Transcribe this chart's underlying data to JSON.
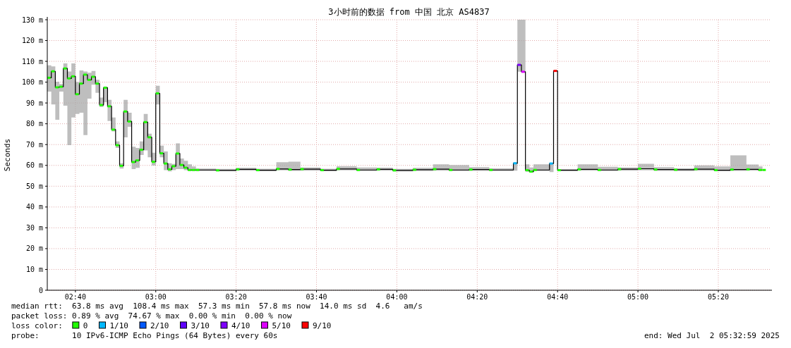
{
  "chart_data": {
    "type": "step",
    "title": "3小时前的数据 from 中国 北京 AS4837",
    "ylabel": "Seconds",
    "legend_title": "loss color:",
    "legend": "bottom",
    "grid": true,
    "xlim": [
      "2025-07-02T02:33",
      "2025-07-02T05:33"
    ],
    "xticks": [
      {
        "value": "2025-07-02T02:40",
        "label": "02:40"
      },
      {
        "value": "2025-07-02T03:00",
        "label": "03:00"
      },
      {
        "value": "2025-07-02T03:20",
        "label": "03:20"
      },
      {
        "value": "2025-07-02T03:40",
        "label": "03:40"
      },
      {
        "value": "2025-07-02T04:00",
        "label": "04:00"
      },
      {
        "value": "2025-07-02T04:20",
        "label": "04:20"
      },
      {
        "value": "2025-07-02T04:40",
        "label": "04:40"
      },
      {
        "value": "2025-07-02T05:00",
        "label": "05:00"
      },
      {
        "value": "2025-07-02T05:20",
        "label": "05:20"
      }
    ],
    "ylim": [
      0,
      130
    ],
    "yticks": [
      0,
      {
        "value": 10,
        "label": "10 m"
      },
      {
        "value": 20,
        "label": "20 m"
      },
      {
        "value": 30,
        "label": "30 m"
      },
      {
        "value": 40,
        "label": "40 m"
      },
      {
        "value": 50,
        "label": "50 m"
      },
      {
        "value": 60,
        "label": "60 m"
      },
      {
        "value": 70,
        "label": "70 m"
      },
      {
        "value": 80,
        "label": "80 m"
      },
      {
        "value": 90,
        "label": "90 m"
      },
      {
        "value": 100,
        "label": "100 m"
      },
      {
        "value": 110,
        "label": "110 m"
      },
      {
        "value": 120,
        "label": "120 m"
      },
      {
        "value": 130,
        "label": "130 m"
      }
    ],
    "annotations": [
      "median rtt:  63.8 ms avg  108.4 ms max  57.3 ms min  57.8 ms now  14.0 ms sd  4.6   am/s",
      "packet loss: 0.89 % avg  74.67 % max  0.00 % min  0.00 % now",
      "probe:       10 IPv6-ICMP Echo Pings (64 Bytes) every 60s",
      "end: Wed Jul  2 05:32:59 2025"
    ],
    "series": [
      {
        "color": "#000000",
        "x": [
          "2025-07-02T02:33",
          "2025-07-02T02:34",
          "2025-07-02T02:35",
          "2025-07-02T02:36",
          "2025-07-02T02:37",
          "2025-07-02T02:38",
          "2025-07-02T02:39",
          "2025-07-02T02:40",
          "2025-07-02T02:41",
          "2025-07-02T02:42",
          "2025-07-02T02:43",
          "2025-07-02T02:44",
          "2025-07-02T02:45",
          "2025-07-02T02:46",
          "2025-07-02T02:47",
          "2025-07-02T02:48",
          "2025-07-02T02:49",
          "2025-07-02T02:50",
          "2025-07-02T02:51",
          "2025-07-02T02:52",
          "2025-07-02T02:53",
          "2025-07-02T02:54",
          "2025-07-02T02:55",
          "2025-07-02T02:56",
          "2025-07-02T02:57",
          "2025-07-02T02:58",
          "2025-07-02T02:59",
          "2025-07-02T03:00",
          "2025-07-02T03:01",
          "2025-07-02T03:02",
          "2025-07-02T03:03",
          "2025-07-02T03:04",
          "2025-07-02T03:05",
          "2025-07-02T03:06",
          "2025-07-02T03:07",
          "2025-07-02T03:08",
          "2025-07-02T03:09",
          "2025-07-02T03:10",
          "2025-07-02T03:15",
          "2025-07-02T03:20",
          "2025-07-02T03:25",
          "2025-07-02T03:30",
          "2025-07-02T03:33",
          "2025-07-02T03:36",
          "2025-07-02T03:41",
          "2025-07-02T03:45",
          "2025-07-02T03:50",
          "2025-07-02T03:55",
          "2025-07-02T03:59",
          "2025-07-02T04:04",
          "2025-07-02T04:09",
          "2025-07-02T04:13",
          "2025-07-02T04:18",
          "2025-07-02T04:23",
          "2025-07-02T04:29",
          "2025-07-02T04:30",
          "2025-07-02T04:31",
          "2025-07-02T04:32",
          "2025-07-02T04:33",
          "2025-07-02T04:34",
          "2025-07-02T04:38",
          "2025-07-02T04:39",
          "2025-07-02T04:40",
          "2025-07-02T04:45",
          "2025-07-02T04:50",
          "2025-07-02T04:55",
          "2025-07-02T05:00",
          "2025-07-02T05:04",
          "2025-07-02T05:09",
          "2025-07-02T05:14",
          "2025-07-02T05:19",
          "2025-07-02T05:23",
          "2025-07-02T05:27",
          "2025-07-02T05:30",
          "2025-07-02T05:31"
        ],
        "values": [
          102.1,
          105.2,
          97.5,
          97.8,
          106.6,
          101.8,
          102.8,
          94.2,
          99.3,
          103.6,
          101.1,
          102.6,
          99.3,
          89.0,
          97.3,
          88.4,
          77.2,
          69.7,
          59.8,
          85.9,
          81.1,
          61.6,
          62.4,
          67.5,
          80.8,
          73.5,
          61.7,
          94.6,
          65.8,
          60.9,
          58.1,
          59.6,
          65.7,
          60.2,
          58.9,
          57.8,
          57.8,
          57.8,
          57.6,
          58.1,
          57.7,
          58.3,
          58.0,
          58.2,
          57.7,
          58.3,
          57.8,
          58.1,
          57.6,
          57.9,
          58.2,
          57.8,
          58.0,
          57.8,
          61.0,
          108.3,
          105.0,
          57.7,
          57.0,
          57.8,
          60.9,
          105.4,
          57.7,
          58.1,
          57.8,
          58.2,
          58.4,
          58.0,
          57.9,
          58.2,
          57.7,
          58.0,
          58.1,
          57.8,
          57.8
        ],
        "lower": [
          95.5,
          89.3,
          81.9,
          95.5,
          88.7,
          69.7,
          83.0,
          84.7,
          85.3,
          74.6,
          92.1,
          98.8,
          94.9,
          88.1,
          90.4,
          81.3,
          76.3,
          68.4,
          58.5,
          73.5,
          78.5,
          58.2,
          58.8,
          65.0,
          67.2,
          63.9,
          59.9,
          89.3,
          63.9,
          57.7,
          57.1,
          57.7,
          58.2,
          58.2,
          57.7,
          57.3,
          57.3,
          57.3,
          57.2,
          57.5,
          57.2,
          57.6,
          57.4,
          57.5,
          57.2,
          57.6,
          57.3,
          57.5,
          57.1,
          57.3,
          57.5,
          57.3,
          57.4,
          57.3,
          57.5,
          105.0,
          104.5,
          57.0,
          56.5,
          57.3,
          56.8,
          105.0,
          57.3,
          57.5,
          57.3,
          57.5,
          57.6,
          57.4,
          57.3,
          57.5,
          57.2,
          57.4,
          57.5,
          57.3,
          57.3
        ],
        "upper": [
          108.1,
          107.6,
          100.2,
          99.1,
          109.0,
          105.1,
          109.0,
          100.0,
          105.6,
          105.1,
          104.5,
          105.4,
          101.1,
          92.6,
          97.9,
          91.5,
          83.0,
          71.5,
          61.0,
          91.5,
          85.3,
          69.0,
          68.4,
          71.5,
          84.7,
          75.2,
          66.1,
          98.3,
          69.5,
          66.7,
          61.0,
          60.7,
          70.6,
          63.3,
          62.2,
          60.5,
          59.5,
          58.5,
          58.3,
          58.8,
          58.4,
          61.5,
          61.8,
          59.0,
          58.4,
          59.6,
          59.0,
          58.9,
          58.3,
          58.8,
          60.5,
          60.2,
          59.2,
          58.6,
          61.5,
          130,
          130,
          60.5,
          59.0,
          60.5,
          61.3,
          105.8,
          58.2,
          60.5,
          59.3,
          59.0,
          60.8,
          59.2,
          58.6,
          60.0,
          59.5,
          64.8,
          60.4,
          59.5,
          59.5
        ]
      },
      {
        "type": "scatter",
        "name": "0",
        "color": "#20ff00",
        "x": [
          "2025-07-02T02:33",
          "2025-07-02T02:34",
          "2025-07-02T02:35",
          "2025-07-02T02:36",
          "2025-07-02T02:37",
          "2025-07-02T02:38",
          "2025-07-02T02:39",
          "2025-07-02T02:40",
          "2025-07-02T02:41",
          "2025-07-02T02:42",
          "2025-07-02T02:43",
          "2025-07-02T02:44",
          "2025-07-02T02:45",
          "2025-07-02T02:46",
          "2025-07-02T02:47",
          "2025-07-02T02:48",
          "2025-07-02T02:49",
          "2025-07-02T02:50",
          "2025-07-02T02:51",
          "2025-07-02T02:52",
          "2025-07-02T02:53",
          "2025-07-02T02:54",
          "2025-07-02T02:55",
          "2025-07-02T02:56",
          "2025-07-02T02:57",
          "2025-07-02T02:58",
          "2025-07-02T02:59",
          "2025-07-02T03:00",
          "2025-07-02T03:01",
          "2025-07-02T03:02",
          "2025-07-02T03:03",
          "2025-07-02T03:04",
          "2025-07-02T03:05",
          "2025-07-02T03:06",
          "2025-07-02T03:07",
          "2025-07-02T03:08",
          "2025-07-02T03:09",
          "2025-07-02T03:10",
          "2025-07-02T03:15",
          "2025-07-02T03:20",
          "2025-07-02T03:25",
          "2025-07-02T03:30",
          "2025-07-02T03:33",
          "2025-07-02T03:36",
          "2025-07-02T03:41",
          "2025-07-02T03:45",
          "2025-07-02T03:50",
          "2025-07-02T03:55",
          "2025-07-02T03:59",
          "2025-07-02T04:04",
          "2025-07-02T04:09",
          "2025-07-02T04:13",
          "2025-07-02T04:18",
          "2025-07-02T04:23",
          "2025-07-02T04:32",
          "2025-07-02T04:33",
          "2025-07-02T04:34",
          "2025-07-02T04:40",
          "2025-07-02T04:45",
          "2025-07-02T04:50",
          "2025-07-02T04:55",
          "2025-07-02T05:00",
          "2025-07-02T05:04",
          "2025-07-02T05:09",
          "2025-07-02T05:14",
          "2025-07-02T05:19",
          "2025-07-02T05:23",
          "2025-07-02T05:27",
          "2025-07-02T05:30",
          "2025-07-02T05:31"
        ],
        "values": [
          102.1,
          105.2,
          97.5,
          97.8,
          106.6,
          101.8,
          102.8,
          94.2,
          99.3,
          103.6,
          101.1,
          102.6,
          99.3,
          89.0,
          97.3,
          88.4,
          77.2,
          69.7,
          59.8,
          85.9,
          81.1,
          61.6,
          62.4,
          67.5,
          80.8,
          73.5,
          61.7,
          94.6,
          65.8,
          60.9,
          58.1,
          59.6,
          65.7,
          60.2,
          58.9,
          57.8,
          57.8,
          57.8,
          57.6,
          58.1,
          57.7,
          58.3,
          58.0,
          58.2,
          57.7,
          58.3,
          57.8,
          58.1,
          57.6,
          57.9,
          58.2,
          57.8,
          58.0,
          57.8,
          57.7,
          57.0,
          57.8,
          57.7,
          58.1,
          57.8,
          58.2,
          58.4,
          58.0,
          57.9,
          58.2,
          57.7,
          58.0,
          58.1,
          57.8,
          57.8
        ]
      },
      {
        "type": "scatter",
        "name": "1/10",
        "color": "#00b8ff",
        "x": [
          "2025-07-02T04:29",
          "2025-07-02T04:38"
        ],
        "values": [
          61.0,
          60.9
        ]
      },
      {
        "type": "scatter",
        "name": "2/10",
        "color": "#0059ff"
      },
      {
        "type": "scatter",
        "name": "3/10",
        "color": "#5e00ff"
      },
      {
        "type": "scatter",
        "name": "4/10",
        "color": "#7e00ff",
        "x": [
          "2025-07-02T04:30"
        ],
        "values": [
          108.3
        ]
      },
      {
        "type": "scatter",
        "name": "5/10",
        "color": "#dd00ff",
        "x": [
          "2025-07-02T04:31"
        ],
        "values": [
          105.0
        ]
      },
      {
        "type": "scatter",
        "name": "9/10",
        "color": "#ff0000",
        "x": [
          "2025-07-02T04:39"
        ],
        "values": [
          105.4
        ]
      }
    ]
  }
}
